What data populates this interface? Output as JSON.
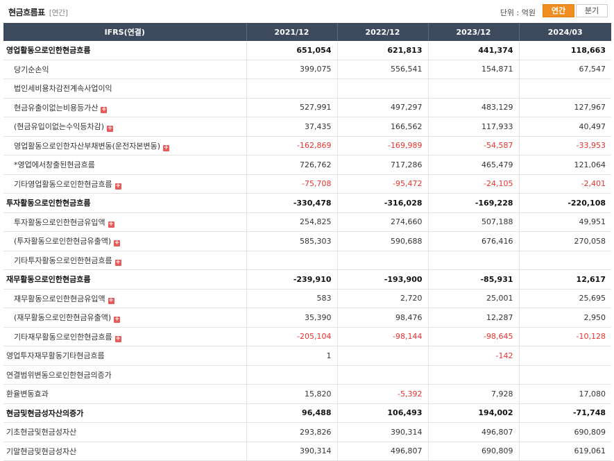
{
  "header": {
    "title": "현금흐름표",
    "period_tag": "[연간]",
    "unit_label": "단위 : 억원",
    "tabs": [
      {
        "label": "연간",
        "active": true
      },
      {
        "label": "분기",
        "active": false
      }
    ]
  },
  "table": {
    "columns": [
      "IFRS(연결)",
      "2021/12",
      "2022/12",
      "2023/12",
      "2024/03"
    ],
    "rows": [
      {
        "label": "영업활동으로인한현금흐름",
        "level": "main",
        "expand": false,
        "values": [
          "651,054",
          "621,813",
          "441,374",
          "118,663"
        ]
      },
      {
        "label": "당기순손익",
        "level": "sub",
        "expand": false,
        "values": [
          "399,075",
          "556,541",
          "154,871",
          "67,547"
        ]
      },
      {
        "label": "법인세비용차감전계속사업이익",
        "level": "sub",
        "expand": false,
        "values": [
          "",
          "",
          "",
          ""
        ]
      },
      {
        "label": "현금유출이없는비용등가산",
        "level": "sub",
        "expand": true,
        "values": [
          "527,991",
          "497,297",
          "483,129",
          "127,967"
        ]
      },
      {
        "label": "(현금유입이없는수익등차감)",
        "level": "sub",
        "expand": true,
        "values": [
          "37,435",
          "166,562",
          "117,933",
          "40,497"
        ]
      },
      {
        "label": "영업활동으로인한자산부채변동(운전자본변동)",
        "level": "sub",
        "expand": true,
        "values": [
          "-162,869",
          "-169,989",
          "-54,587",
          "-33,953"
        ]
      },
      {
        "label": "*영업에서창출된현금흐름",
        "level": "sub",
        "expand": false,
        "values": [
          "726,762",
          "717,286",
          "465,479",
          "121,064"
        ]
      },
      {
        "label": "기타영업활동으로인한현금흐름",
        "level": "sub",
        "expand": true,
        "values": [
          "-75,708",
          "-95,472",
          "-24,105",
          "-2,401"
        ]
      },
      {
        "label": "투자활동으로인한현금흐름",
        "level": "main",
        "expand": false,
        "values": [
          "-330,478",
          "-316,028",
          "-169,228",
          "-220,108"
        ]
      },
      {
        "label": "투자활동으로인한현금유입액",
        "level": "sub",
        "expand": true,
        "values": [
          "254,825",
          "274,660",
          "507,188",
          "49,951"
        ]
      },
      {
        "label": "(투자활동으로인한현금유출액)",
        "level": "sub",
        "expand": true,
        "values": [
          "585,303",
          "590,688",
          "676,416",
          "270,058"
        ]
      },
      {
        "label": "기타투자활동으로인한현금흐름",
        "level": "sub",
        "expand": true,
        "values": [
          "",
          "",
          "",
          ""
        ]
      },
      {
        "label": "재무활동으로인한현금흐름",
        "level": "main",
        "expand": false,
        "values": [
          "-239,910",
          "-193,900",
          "-85,931",
          "12,617"
        ]
      },
      {
        "label": "재무활동으로인한현금유입액",
        "level": "sub",
        "expand": true,
        "values": [
          "583",
          "2,720",
          "25,001",
          "25,695"
        ]
      },
      {
        "label": "(재무활동으로인한현금유출액)",
        "level": "sub",
        "expand": true,
        "values": [
          "35,390",
          "98,476",
          "12,287",
          "2,950"
        ]
      },
      {
        "label": "기타재무활동으로인한현금흐름",
        "level": "sub",
        "expand": true,
        "values": [
          "-205,104",
          "-98,144",
          "-98,645",
          "-10,128"
        ]
      },
      {
        "label": "영업투자재무활동기타현금흐름",
        "level": "lvl0",
        "expand": false,
        "values": [
          "1",
          "",
          "-142",
          ""
        ]
      },
      {
        "label": "연결범위변동으로인한현금의증가",
        "level": "lvl0",
        "expand": false,
        "values": [
          "",
          "",
          "",
          ""
        ]
      },
      {
        "label": "환율변동효과",
        "level": "lvl0",
        "expand": false,
        "values": [
          "15,820",
          "-5,392",
          "7,928",
          "17,080"
        ]
      },
      {
        "label": "현금및현금성자산의증가",
        "level": "main",
        "expand": false,
        "values": [
          "96,488",
          "106,493",
          "194,002",
          "-71,748"
        ]
      },
      {
        "label": "기초현금및현금성자산",
        "level": "lvl0",
        "expand": false,
        "values": [
          "293,826",
          "390,314",
          "496,807",
          "690,809"
        ]
      },
      {
        "label": "기말현금및현금성자산",
        "level": "lvl0",
        "expand": false,
        "values": [
          "390,314",
          "496,807",
          "690,809",
          "619,061"
        ]
      }
    ]
  },
  "colors": {
    "header_bg": "#3d4a5e",
    "negative": "#e8332e",
    "active_tab": "#f18e21",
    "expand_icon": "#e85a5a"
  }
}
